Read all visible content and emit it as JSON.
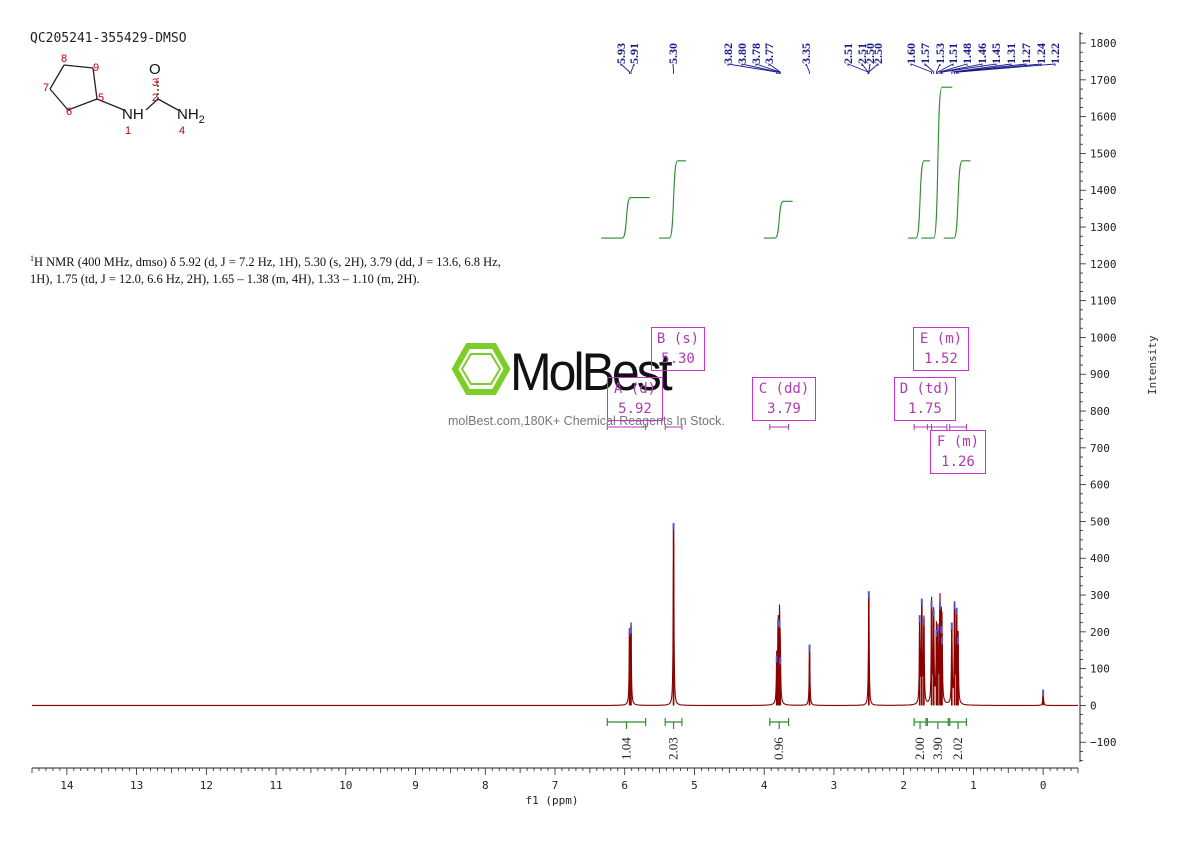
{
  "sample_id": "QC205241-355429-DMSO",
  "structure": {
    "atom_labels": [
      {
        "id": "8",
        "text": "8"
      },
      {
        "id": "9",
        "text": "9"
      },
      {
        "id": "7",
        "text": "7"
      },
      {
        "id": "5",
        "text": "5"
      },
      {
        "id": "6",
        "text": "6"
      },
      {
        "id": "3",
        "text": "3"
      },
      {
        "id": "2",
        "text": "2"
      },
      {
        "id": "1",
        "text": "1"
      },
      {
        "id": "4",
        "text": "4"
      }
    ],
    "O": "O",
    "NH": "NH",
    "NH2": "NH",
    "NH2_sub": "2"
  },
  "nmr_description": {
    "nucleus_sup": "1",
    "line1": "H NMR (400 MHz, dmso) δ 5.92 (d, J = 7.2 Hz, 1H), 5.30 (s, 2H), 3.79 (dd, J = 13.6, 6.8 Hz,",
    "line2": "1H), 1.75 (td, J = 12.0, 6.6 Hz, 2H), 1.65 – 1.38 (m, 4H), 1.33 – 1.10 (m, 2H)."
  },
  "watermark": {
    "brand": "MolBest",
    "tagline": "molBest.com,180K+ Chemical Reagents In Stock."
  },
  "intensity_label": "Intensity",
  "colors": {
    "spectrum": "#8b0000",
    "integral": "#2e8b2e",
    "peak_label": "#1a1a8c",
    "multiplet_box": "#cc33cc",
    "logo_green": "#7ccc2a"
  },
  "chart_data": {
    "type": "line",
    "xlabel": "f1 (ppm)",
    "ylabel": "Intensity",
    "xlim": [
      14.5,
      -0.5
    ],
    "ylim": [
      -170,
      1830
    ],
    "x_ticks": [
      14,
      13,
      12,
      11,
      10,
      9,
      8,
      7,
      6,
      5,
      4,
      3,
      2,
      1,
      0
    ],
    "y_ticks": [
      -100,
      0,
      100,
      200,
      300,
      400,
      500,
      600,
      700,
      800,
      900,
      1000,
      1100,
      1200,
      1300,
      1400,
      1500,
      1600,
      1700,
      1800
    ],
    "peak_labels": [
      "5.93",
      "5.91",
      "5.30",
      "3.82",
      "3.80",
      "3.78",
      "3.77",
      "3.35",
      "2.51",
      "2.51",
      "2.50",
      "2.50",
      "1.60",
      "1.57",
      "1.53",
      "1.51",
      "1.48",
      "1.46",
      "1.45",
      "1.31",
      "1.27",
      "1.24",
      "1.22"
    ],
    "peaks": [
      {
        "ppm": 5.93,
        "height": 205
      },
      {
        "ppm": 5.91,
        "height": 210
      },
      {
        "ppm": 5.3,
        "height": 490
      },
      {
        "ppm": 3.82,
        "height": 130
      },
      {
        "ppm": 3.8,
        "height": 230
      },
      {
        "ppm": 3.78,
        "height": 225
      },
      {
        "ppm": 3.77,
        "height": 125
      },
      {
        "ppm": 3.35,
        "height": 160
      },
      {
        "ppm": 2.5,
        "height": 305
      },
      {
        "ppm": 1.77,
        "height": 240
      },
      {
        "ppm": 1.74,
        "height": 285
      },
      {
        "ppm": 1.71,
        "height": 230
      },
      {
        "ppm": 1.6,
        "height": 280
      },
      {
        "ppm": 1.57,
        "height": 255
      },
      {
        "ppm": 1.53,
        "height": 200
      },
      {
        "ppm": 1.51,
        "height": 215
      },
      {
        "ppm": 1.48,
        "height": 275
      },
      {
        "ppm": 1.46,
        "height": 210
      },
      {
        "ppm": 1.45,
        "height": 180
      },
      {
        "ppm": 1.31,
        "height": 220
      },
      {
        "ppm": 1.27,
        "height": 275
      },
      {
        "ppm": 1.24,
        "height": 260
      },
      {
        "ppm": 1.22,
        "height": 180
      },
      {
        "ppm": 0.0,
        "height": 38
      }
    ],
    "integrals": [
      {
        "from": 6.25,
        "to": 5.7,
        "value": "1.04",
        "base": 1270,
        "top": 1380
      },
      {
        "from": 5.42,
        "to": 5.18,
        "value": "2.03",
        "base": 1270,
        "top": 1480
      },
      {
        "from": 3.92,
        "to": 3.65,
        "value": "0.96",
        "base": 1270,
        "top": 1370
      },
      {
        "from": 1.85,
        "to": 1.68,
        "value": "2.00",
        "base": 1270,
        "top": 1480
      },
      {
        "from": 1.66,
        "to": 1.36,
        "value": "3.90",
        "base": 1270,
        "top": 1680
      },
      {
        "from": 1.34,
        "to": 1.1,
        "value": "2.02",
        "base": 1270,
        "top": 1480
      }
    ],
    "multiplets": [
      {
        "label": "A (d)",
        "shift": "5.92",
        "from": 6.25,
        "to": 5.7
      },
      {
        "label": "B (s)",
        "shift": "5.30",
        "from": 5.42,
        "to": 5.18
      },
      {
        "label": "C (dd)",
        "shift": "3.79",
        "from": 3.92,
        "to": 3.65
      },
      {
        "label": "D (td)",
        "shift": "1.75",
        "from": 1.85,
        "to": 1.6
      },
      {
        "label": "E (m)",
        "shift": "1.52",
        "from": 1.66,
        "to": 1.38
      },
      {
        "label": "F (m)",
        "shift": "1.26",
        "from": 1.34,
        "to": 1.1
      }
    ]
  }
}
